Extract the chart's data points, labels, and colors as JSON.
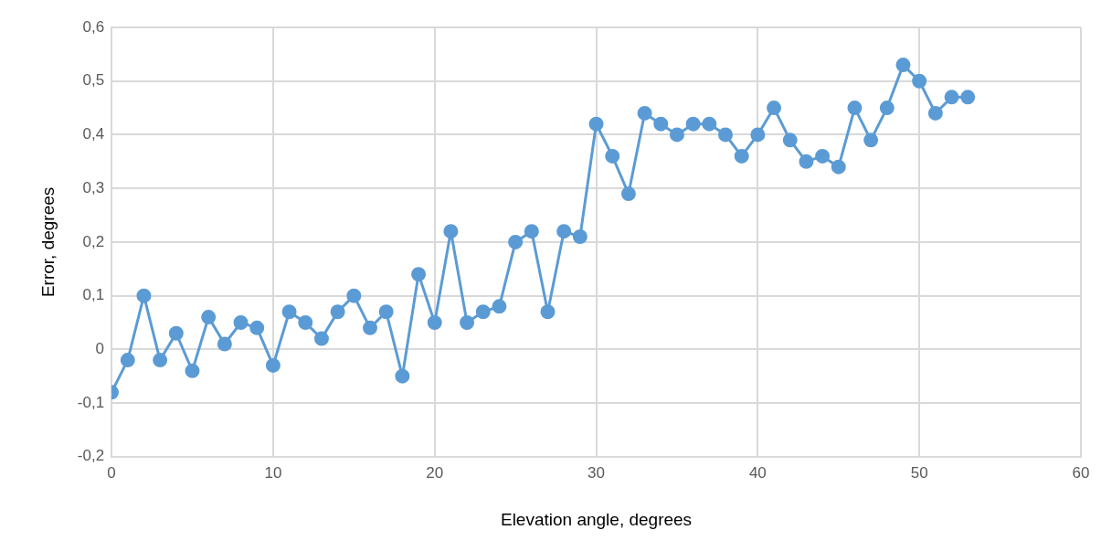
{
  "chart_data": {
    "type": "line",
    "xlabel": "Elevation angle, degrees",
    "ylabel": "Error, degrees",
    "x": [
      0,
      1,
      2,
      3,
      4,
      5,
      6,
      7,
      8,
      9,
      10,
      11,
      12,
      13,
      14,
      15,
      16,
      17,
      18,
      19,
      20,
      21,
      22,
      23,
      24,
      25,
      26,
      27,
      28,
      29,
      30,
      31,
      32,
      33,
      34,
      35,
      36,
      37,
      38,
      39,
      40,
      41,
      42,
      43,
      44,
      45,
      46,
      47,
      48,
      49,
      50,
      51,
      52,
      53
    ],
    "series": [
      {
        "color": "#5b9bd5",
        "values": [
          -0.08,
          -0.02,
          0.1,
          -0.02,
          0.03,
          -0.04,
          0.06,
          0.01,
          0.05,
          0.04,
          -0.03,
          0.07,
          0.05,
          0.02,
          0.07,
          0.1,
          0.04,
          0.07,
          -0.05,
          0.14,
          0.05,
          0.22,
          0.05,
          0.07,
          0.08,
          0.2,
          0.22,
          0.07,
          0.22,
          0.21,
          0.42,
          0.36,
          0.29,
          0.44,
          0.42,
          0.4,
          0.42,
          0.42,
          0.4,
          0.36,
          0.4,
          0.45,
          0.39,
          0.35,
          0.36,
          0.34,
          0.45,
          0.39,
          0.45,
          0.53,
          0.5,
          0.44,
          0.47,
          0.47
        ]
      }
    ],
    "xlim": [
      0,
      60
    ],
    "xticks": [
      0,
      10,
      20,
      30,
      40,
      50,
      60
    ],
    "ylim": [
      -0.2,
      0.6
    ],
    "yticks": [
      {
        "value": -0.2,
        "label": "-0,2"
      },
      {
        "value": -0.1,
        "label": "-0,1"
      },
      {
        "value": 0,
        "label": "0"
      },
      {
        "value": 0.1,
        "label": "0,1"
      },
      {
        "value": 0.2,
        "label": "0,2"
      },
      {
        "value": 0.3,
        "label": "0,3"
      },
      {
        "value": 0.4,
        "label": "0,4"
      },
      {
        "value": 0.5,
        "label": "0,5"
      },
      {
        "value": 0.6,
        "label": "0,6"
      }
    ],
    "grid": true,
    "marker": "circle",
    "line_style": "solid",
    "legend": false
  }
}
